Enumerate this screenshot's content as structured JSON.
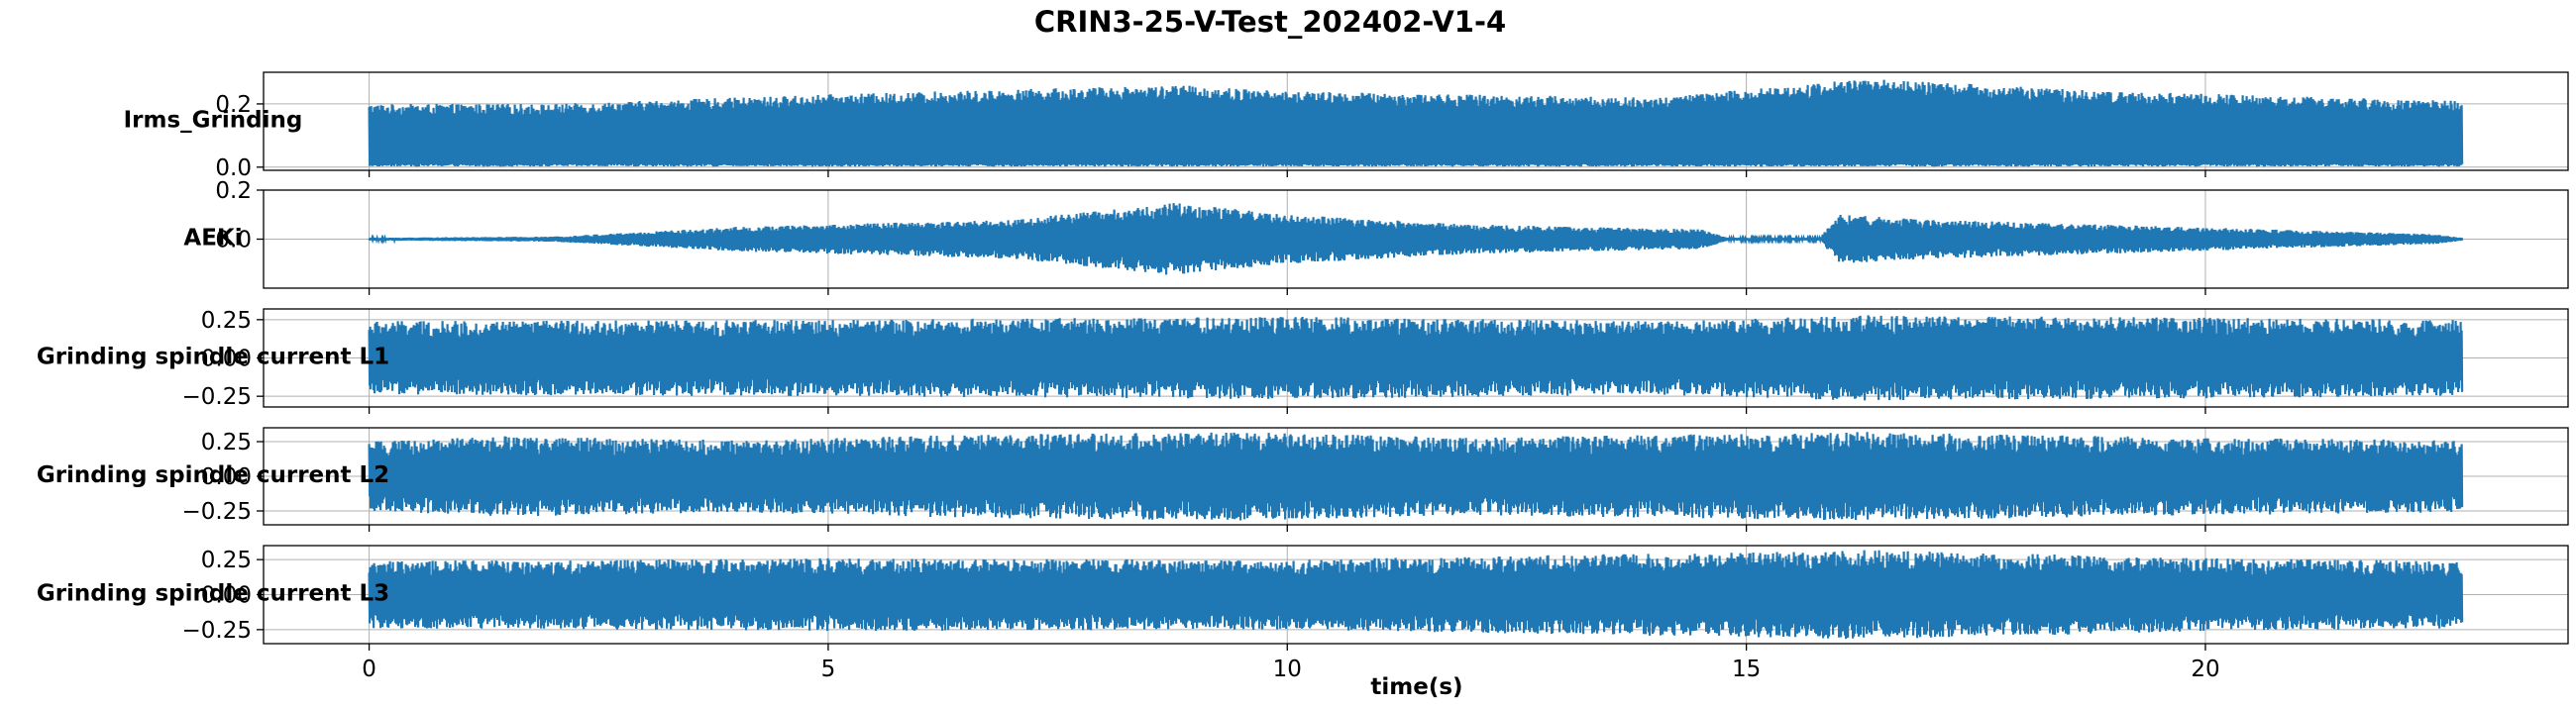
{
  "chart_data": {
    "type": "line",
    "title": "CRIN3-25-V-Test_202402-V1-4",
    "xlabel": "time(s)",
    "xlim": [
      -1.15,
      23.95
    ],
    "xticks": [
      0,
      5,
      10,
      15,
      20
    ],
    "x_range": [
      0,
      22.8
    ],
    "color": "#1f77b4",
    "grid": true,
    "subplots": [
      {
        "ylabel": "Irms_Grinding",
        "ylim": [
          -0.01,
          0.3
        ],
        "yticks": [
          0.0,
          0.2
        ],
        "ytick_labels": [
          "0.0",
          "0.2"
        ],
        "signal": {
          "kind": "rectified",
          "baseline": 0.01,
          "envelope": [
            [
              0,
              0.2
            ],
            [
              2,
              0.2
            ],
            [
              5,
              0.23
            ],
            [
              8.8,
              0.26
            ],
            [
              10,
              0.24
            ],
            [
              14,
              0.22
            ],
            [
              16.3,
              0.28
            ],
            [
              19,
              0.24
            ],
            [
              22.8,
              0.21
            ]
          ]
        }
      },
      {
        "ylabel": "AEKi",
        "ylim": [
          -0.2,
          0.2
        ],
        "yticks": [
          -0.0,
          0.2
        ],
        "ytick_labels": [
          "0.0",
          "0.2"
        ],
        "signal": {
          "kind": "symmetric",
          "envelope": [
            [
              0,
              0.005
            ],
            [
              2,
              0.01
            ],
            [
              4,
              0.05
            ],
            [
              7,
              0.08
            ],
            [
              8.8,
              0.15
            ],
            [
              10,
              0.1
            ],
            [
              12,
              0.06
            ],
            [
              14.5,
              0.04
            ],
            [
              14.8,
              0.005
            ],
            [
              15.8,
              0.005
            ],
            [
              16,
              0.1
            ],
            [
              17,
              0.08
            ],
            [
              22.5,
              0.02
            ],
            [
              22.8,
              0.005
            ]
          ]
        }
      },
      {
        "ylabel": "Grinding spindle current L1",
        "ylim": [
          -0.32,
          0.32
        ],
        "yticks": [
          -0.25,
          0.0,
          0.25
        ],
        "ytick_labels": [
          "−0.25",
          "0.00",
          "0.25"
        ],
        "signal": {
          "kind": "symmetric",
          "envelope": [
            [
              0,
              0.24
            ],
            [
              5,
              0.25
            ],
            [
              10,
              0.27
            ],
            [
              14,
              0.24
            ],
            [
              16.3,
              0.28
            ],
            [
              22.8,
              0.25
            ]
          ]
        }
      },
      {
        "ylabel": "Grinding spindle current L2",
        "ylim": [
          -0.35,
          0.35
        ],
        "yticks": [
          -0.25,
          0.0,
          0.25
        ],
        "ytick_labels": [
          "−0.25",
          "0.00",
          "0.25"
        ],
        "signal": {
          "kind": "symmetric",
          "envelope": [
            [
              0,
              0.25
            ],
            [
              1.5,
              0.29
            ],
            [
              4,
              0.26
            ],
            [
              6.5,
              0.3
            ],
            [
              9.5,
              0.32
            ],
            [
              12,
              0.28
            ],
            [
              16.3,
              0.32
            ],
            [
              20,
              0.28
            ],
            [
              22.8,
              0.26
            ]
          ]
        }
      },
      {
        "ylabel": "Grinding spindle current L3",
        "ylim": [
          -0.35,
          0.35
        ],
        "yticks": [
          -0.25,
          0.0,
          0.25
        ],
        "ytick_labels": [
          "−0.25",
          "0.00",
          "0.25"
        ],
        "signal": {
          "kind": "symmetric",
          "envelope": [
            [
              0,
              0.24
            ],
            [
              5,
              0.26
            ],
            [
              10,
              0.25
            ],
            [
              16.3,
              0.32
            ],
            [
              20,
              0.26
            ],
            [
              22.8,
              0.24
            ]
          ]
        }
      }
    ]
  }
}
